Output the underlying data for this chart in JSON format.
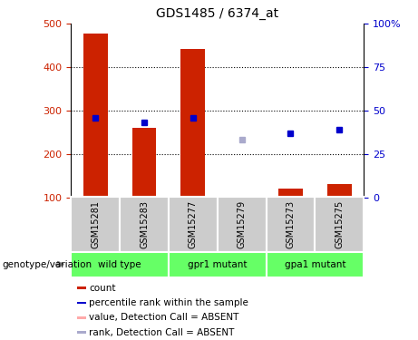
{
  "title": "GDS1485 / 6374_at",
  "samples": [
    "GSM15281",
    "GSM15283",
    "GSM15277",
    "GSM15279",
    "GSM15273",
    "GSM15275"
  ],
  "bar_values": [
    478,
    261,
    443,
    104,
    120,
    131
  ],
  "bar_absent": [
    false,
    false,
    false,
    true,
    false,
    false
  ],
  "rank_values": [
    46,
    43,
    46,
    33,
    37,
    39
  ],
  "rank_absent": [
    false,
    false,
    false,
    true,
    false,
    false
  ],
  "bar_bottom": 100,
  "ylim_left": [
    100,
    500
  ],
  "ylim_right": [
    0,
    100
  ],
  "yticks_left": [
    100,
    200,
    300,
    400,
    500
  ],
  "yticks_right": [
    0,
    25,
    50,
    75,
    100
  ],
  "yticklabels_right": [
    "0",
    "25",
    "50",
    "75",
    "100%"
  ],
  "bar_color_present": "#cc2200",
  "bar_color_absent": "#ffaaaa",
  "rank_color_present": "#0000cc",
  "rank_color_absent": "#aaaacc",
  "sample_bg_color": "#cccccc",
  "group_bg_color": "#66ff66",
  "groups": [
    {
      "label": "wild type",
      "start": 0,
      "end": 1
    },
    {
      "label": "gpr1 mutant",
      "start": 2,
      "end": 3
    },
    {
      "label": "gpa1 mutant",
      "start": 4,
      "end": 5
    }
  ],
  "genotype_label": "genotype/variation",
  "legend_items": [
    {
      "label": "count",
      "color": "#cc2200"
    },
    {
      "label": "percentile rank within the sample",
      "color": "#0000cc"
    },
    {
      "label": "value, Detection Call = ABSENT",
      "color": "#ffaaaa"
    },
    {
      "label": "rank, Detection Call = ABSENT",
      "color": "#aaaacc"
    }
  ]
}
